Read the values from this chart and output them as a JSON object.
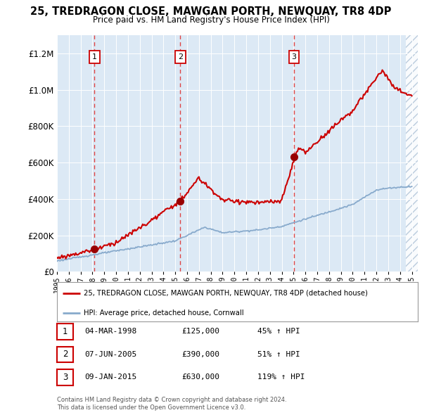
{
  "title": "25, TREDRAGON CLOSE, MAWGAN PORTH, NEWQUAY, TR8 4DP",
  "subtitle": "Price paid vs. HM Land Registry's House Price Index (HPI)",
  "property_label": "25, TREDRAGON CLOSE, MAWGAN PORTH, NEWQUAY, TR8 4DP (detached house)",
  "hpi_label": "HPI: Average price, detached house, Cornwall",
  "transactions": [
    {
      "num": 1,
      "date": "04-MAR-1998",
      "price": 125000,
      "pct": "45%",
      "direction": "↑",
      "year": 1998.17
    },
    {
      "num": 2,
      "date": "07-JUN-2005",
      "price": 390000,
      "pct": "51%",
      "direction": "↑",
      "year": 2005.43
    },
    {
      "num": 3,
      "date": "09-JAN-2015",
      "price": 630000,
      "pct": "119%",
      "direction": "↑",
      "year": 2015.03
    }
  ],
  "footnote1": "Contains HM Land Registry data © Crown copyright and database right 2024.",
  "footnote2": "This data is licensed under the Open Government Licence v3.0.",
  "ylim": [
    0,
    1300000
  ],
  "yticks": [
    0,
    200000,
    400000,
    600000,
    800000,
    1000000,
    1200000
  ],
  "bg_color": "#dce9f5",
  "line_color_property": "#cc0000",
  "line_color_hpi": "#88aacc",
  "dashed_line_color": "#dd4444",
  "marker_color": "#990000",
  "box_edge_color": "#cc0000",
  "grid_color": "#c8d8e8"
}
